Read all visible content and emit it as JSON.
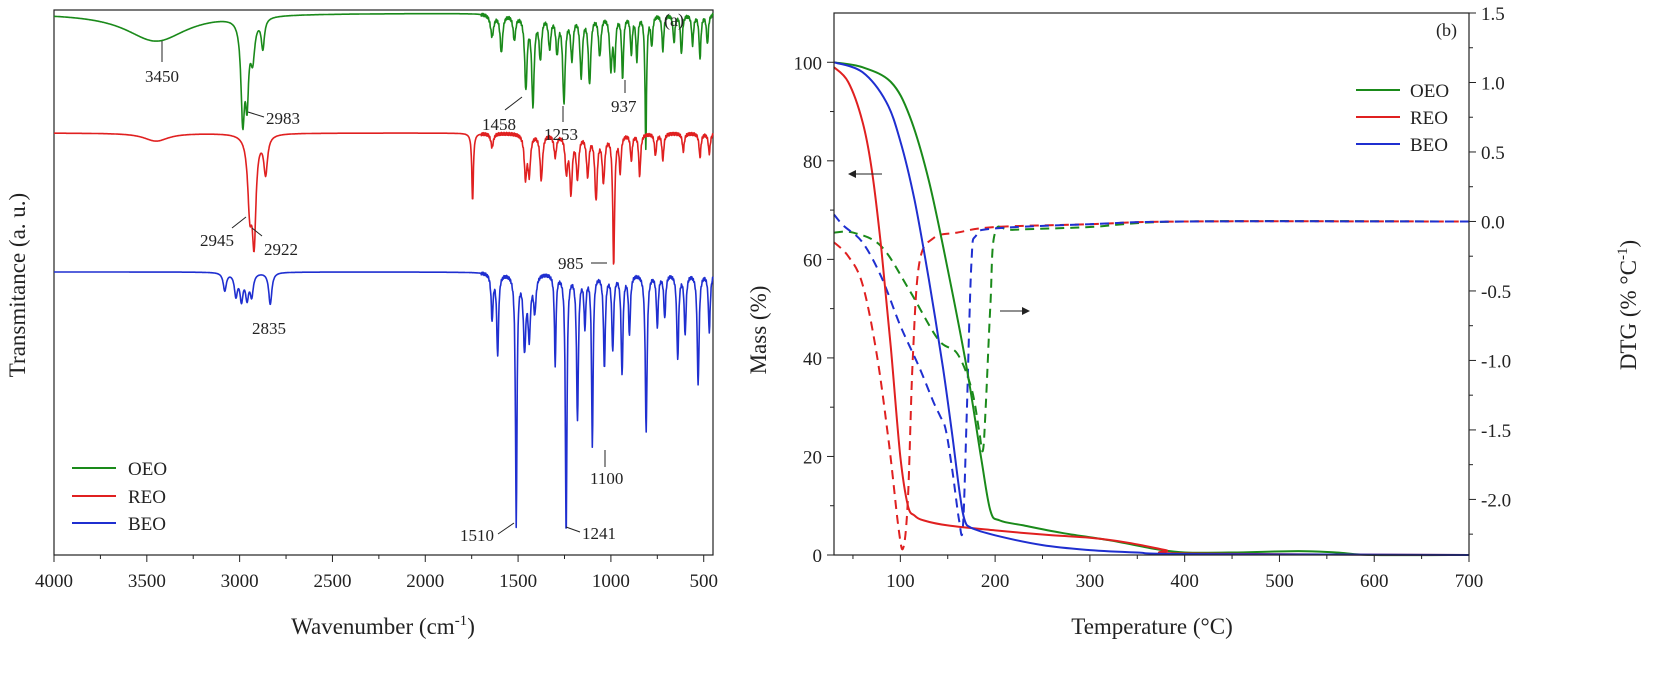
{
  "colors": {
    "OEO": "#1a8a1a",
    "REO": "#e02020",
    "BEO": "#1f2fd0",
    "axis": "#222222"
  },
  "chart_data": [
    {
      "panel": "(a)",
      "type": "line",
      "xlabel": "Wavenumber (cm",
      "xlabel_sup": "-1",
      "xlabel_close": ")",
      "ylabel": "Transmitance (a. u.)",
      "xlim": [
        4000,
        450
      ],
      "x_reversed": true,
      "x_ticks": [
        "4000",
        "3500",
        "3000",
        "2500",
        "2000",
        "1500",
        "1000",
        "500"
      ],
      "legend": [
        "OEO",
        "REO",
        "BEO"
      ],
      "legend_position": "bottom-left",
      "series": [
        {
          "name": "OEO",
          "baseline": 0,
          "peaks": [
            [
              3450,
              28,
              200
            ],
            [
              2983,
              98,
              12
            ],
            [
              2960,
              70,
              10
            ],
            [
              2930,
              38,
              14
            ],
            [
              2875,
              30,
              10
            ],
            [
              1640,
              22,
              10
            ],
            [
              1590,
              38,
              8
            ],
            [
              1520,
              25,
              8
            ],
            [
              1458,
              72,
              8
            ],
            [
              1420,
              88,
              8
            ],
            [
              1380,
              42,
              8
            ],
            [
              1330,
              32,
              8
            ],
            [
              1290,
              36,
              8
            ],
            [
              1253,
              86,
              8
            ],
            [
              1210,
              42,
              8
            ],
            [
              1160,
              60,
              8
            ],
            [
              1115,
              68,
              8
            ],
            [
              1060,
              40,
              8
            ],
            [
              1000,
              52,
              8
            ],
            [
              980,
              48,
              6
            ],
            [
              937,
              62,
              6
            ],
            [
              890,
              38,
              6
            ],
            [
              860,
              44,
              6
            ],
            [
              812,
              132,
              5
            ],
            [
              780,
              30,
              6
            ],
            [
              720,
              36,
              6
            ],
            [
              660,
              28,
              6
            ],
            [
              620,
              40,
              6
            ],
            [
              560,
              30,
              6
            ],
            [
              520,
              44,
              6
            ],
            [
              480,
              30,
              6
            ]
          ]
        },
        {
          "name": "REO",
          "baseline": 0,
          "peaks": [
            [
              3450,
              8,
              80
            ],
            [
              2945,
              70,
              14
            ],
            [
              2922,
              98,
              12
            ],
            [
              2860,
              38,
              12
            ],
            [
              1745,
              68,
              5
            ],
            [
              1640,
              14,
              8
            ],
            [
              1460,
              42,
              8
            ],
            [
              1440,
              38,
              8
            ],
            [
              1375,
              46,
              8
            ],
            [
              1300,
              22,
              8
            ],
            [
              1240,
              36,
              8
            ],
            [
              1215,
              56,
              8
            ],
            [
              1180,
              42,
              8
            ],
            [
              1125,
              40,
              8
            ],
            [
              1080,
              64,
              8
            ],
            [
              1040,
              46,
              8
            ],
            [
              985,
              130,
              6
            ],
            [
              950,
              36,
              6
            ],
            [
              890,
              26,
              6
            ],
            [
              845,
              42,
              6
            ],
            [
              760,
              22,
              6
            ],
            [
              720,
              26,
              6
            ],
            [
              610,
              18,
              6
            ],
            [
              520,
              24,
              6
            ],
            [
              470,
              20,
              6
            ]
          ]
        },
        {
          "name": "BEO",
          "baseline": 0,
          "peaks": [
            [
              3080,
              18,
              10
            ],
            [
              3020,
              22,
              10
            ],
            [
              2990,
              26,
              10
            ],
            [
              2960,
              24,
              10
            ],
            [
              2935,
              22,
              10
            ],
            [
              2835,
              32,
              10
            ],
            [
              1640,
              46,
              6
            ],
            [
              1610,
              82,
              6
            ],
            [
              1510,
              250,
              5
            ],
            [
              1465,
              72,
              8
            ],
            [
              1440,
              60,
              8
            ],
            [
              1410,
              36,
              8
            ],
            [
              1300,
              90,
              5
            ],
            [
              1241,
              264,
              5
            ],
            [
              1180,
              144,
              6
            ],
            [
              1140,
              50,
              6
            ],
            [
              1100,
              172,
              5
            ],
            [
              1035,
              92,
              6
            ],
            [
              990,
              76,
              6
            ],
            [
              940,
              100,
              6
            ],
            [
              900,
              60,
              6
            ],
            [
              810,
              158,
              6
            ],
            [
              750,
              52,
              6
            ],
            [
              710,
              44,
              6
            ],
            [
              640,
              86,
              6
            ],
            [
              600,
              60,
              6
            ],
            [
              530,
              112,
              6
            ],
            [
              470,
              58,
              6
            ]
          ]
        }
      ],
      "annotations": [
        "3450",
        "2983",
        "1458",
        "1253",
        "937",
        "2945",
        "2922",
        "985",
        "2835",
        "1100",
        "1510",
        "1241"
      ]
    },
    {
      "panel": "(b)",
      "type": "line",
      "xlabel": "Temperature (°C)",
      "ylabel_left": "Mass (%)",
      "ylabel_right": "DTG (% °C",
      "ylabel_right_sup": "-1",
      "ylabel_right_close": ")",
      "xlim": [
        30,
        700
      ],
      "ylim_left": [
        0,
        110
      ],
      "ylim_right": [
        -2.4,
        1.5
      ],
      "x_ticks": [
        "100",
        "200",
        "300",
        "400",
        "500",
        "600",
        "700"
      ],
      "y_left_ticks": [
        "0",
        "20",
        "40",
        "60",
        "80",
        "100"
      ],
      "y_right_ticks": [
        "-2.0",
        "-1.5",
        "-1.0",
        "-0.5",
        "0.0",
        "0.5",
        "1.0",
        "1.5"
      ],
      "legend": [
        "OEO",
        "REO",
        "BEO"
      ],
      "legend_position": "top-right",
      "mass_series": [
        {
          "name": "OEO",
          "x": [
            30,
            60,
            90,
            110,
            130,
            150,
            170,
            185,
            195,
            205,
            230,
            270,
            320,
            370,
            400,
            450,
            520,
            560,
            600,
            700
          ],
          "y": [
            100,
            99,
            96,
            89,
            76,
            58,
            38,
            20,
            9,
            7,
            6,
            4.5,
            3,
            1.2,
            0.5,
            0.5,
            0.8,
            0.5,
            0,
            0
          ]
        },
        {
          "name": "REO",
          "x": [
            30,
            45,
            60,
            70,
            80,
            90,
            100,
            108,
            115,
            125,
            150,
            200,
            260,
            300,
            340,
            380,
            400,
            700
          ],
          "y": [
            99,
            96,
            88,
            78,
            62,
            42,
            20,
            10,
            8,
            7,
            6,
            5,
            4,
            3.5,
            2.5,
            1,
            0.3,
            0
          ]
        },
        {
          "name": "BEO",
          "x": [
            30,
            60,
            85,
            100,
            115,
            130,
            145,
            155,
            163,
            168,
            175,
            200,
            250,
            300,
            350,
            400,
            700
          ],
          "y": [
            100,
            98,
            92,
            84,
            72,
            56,
            38,
            24,
            12,
            7,
            5.5,
            4,
            2,
            1,
            0.5,
            0.2,
            0
          ]
        }
      ],
      "dtg_series": [
        {
          "name": "OEO",
          "x": [
            30,
            50,
            80,
            110,
            140,
            160,
            175,
            183,
            187,
            190,
            195,
            200,
            220,
            300,
            400,
            700
          ],
          "y": [
            -0.08,
            -0.08,
            -0.18,
            -0.5,
            -0.85,
            -0.95,
            -1.2,
            -1.5,
            -1.65,
            -1.35,
            -0.6,
            -0.08,
            -0.06,
            -0.04,
            0,
            0
          ]
        },
        {
          "name": "REO",
          "x": [
            30,
            45,
            60,
            75,
            88,
            98,
            103,
            108,
            113,
            120,
            135,
            160,
            200,
            300,
            400,
            700
          ],
          "y": [
            -0.15,
            -0.25,
            -0.45,
            -0.95,
            -1.6,
            -2.2,
            -2.35,
            -2.0,
            -1.0,
            -0.3,
            -0.12,
            -0.08,
            -0.04,
            -0.02,
            0,
            0
          ]
        },
        {
          "name": "BEO",
          "x": [
            30,
            40,
            60,
            80,
            100,
            120,
            135,
            142,
            148,
            155,
            162,
            166,
            170,
            175,
            180,
            200,
            300,
            400,
            700
          ],
          "y": [
            0.05,
            -0.03,
            -0.15,
            -0.4,
            -0.75,
            -1.05,
            -1.3,
            -1.4,
            -1.5,
            -1.8,
            -2.15,
            -2.2,
            -1.4,
            -0.3,
            -0.1,
            -0.05,
            -0.02,
            0,
            0
          ]
        }
      ]
    }
  ]
}
